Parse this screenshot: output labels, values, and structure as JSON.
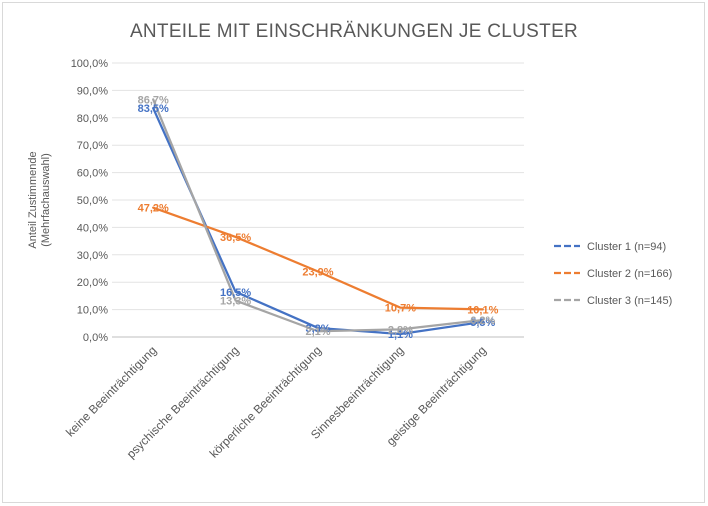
{
  "chart_data": {
    "type": "line",
    "title": "ANTEILE MIT EINSCHRÄNKUNGEN JE CLUSTER",
    "ylabel_lines": [
      "Anteil Zustimmende",
      "(Mehrfachauswahl)"
    ],
    "xlabel": "",
    "ylim": [
      0,
      100
    ],
    "y_ticks": [
      "0,0%",
      "10,0%",
      "20,0%",
      "30,0%",
      "40,0%",
      "50,0%",
      "60,0%",
      "70,0%",
      "80,0%",
      "90,0%",
      "100,0%"
    ],
    "categories": [
      "keine Beeinträchtigung",
      "psychische Beeinträchtigung",
      "körperliche Beeinträchtigung",
      "Sinnesbeeinträchtigung",
      "geistige Beeinträchtigung"
    ],
    "grid": true,
    "legend_position": "right",
    "series": [
      {
        "name": "Cluster 1 (n=94)",
        "color": "#4472c4",
        "values": [
          83.5,
          16.5,
          3.3,
          1.1,
          5.5
        ],
        "labels": [
          "83,5%",
          "16,5%",
          "3,3%",
          "1,1%",
          "5,5%"
        ]
      },
      {
        "name": "Cluster 2 (n=166)",
        "color": "#ed7d31",
        "values": [
          47.2,
          36.5,
          23.9,
          10.7,
          10.1
        ],
        "labels": [
          "47,2%",
          "36,5%",
          "23,9%",
          "10,7%",
          "10,1%"
        ]
      },
      {
        "name": "Cluster 3 (n=145)",
        "color": "#a5a5a5",
        "values": [
          86.7,
          13.3,
          2.1,
          2.8,
          6.2
        ],
        "labels": [
          "86,7%",
          "13,3%",
          "2,1%",
          "2,8%",
          "6,2%"
        ]
      }
    ]
  }
}
